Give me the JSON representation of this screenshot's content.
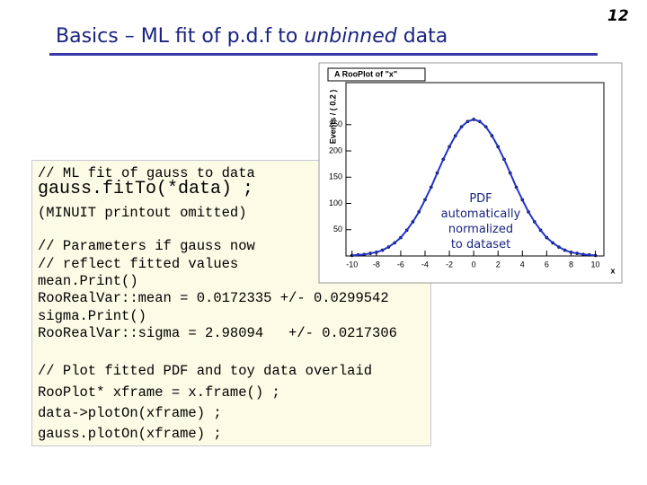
{
  "slide": {
    "title_before": "Basics – ML fit of p.d.f to ",
    "title_italic": "unbinned",
    "title_after": " data",
    "page_number": "12"
  },
  "code": {
    "lines": [
      "// ML fit of gauss to data",
      "gauss.fitTo(*data) ;",
      "(MINUIT printout omitted)",
      "// Parameters if gauss now",
      "// reflect fitted values",
      "mean.Print()",
      "RooRealVar::mean = 0.0172335 +/- 0.0299542",
      "sigma.Print()",
      "RooRealVar::sigma = 2.98094   +/- 0.0217306",
      "// Plot fitted PDF and toy data overlaid",
      "RooPlot* xframe = x.frame() ;",
      "data->plotOn(xframe) ;",
      "gauss.plotOn(xframe) ;"
    ]
  },
  "annotation": {
    "lines": [
      "PDF",
      "automatically",
      "normalized",
      "to dataset"
    ]
  },
  "chart_data": {
    "type": "scatter",
    "title": "A RooPlot of \"x\"",
    "ylabel": "Events / ( 0.2 )",
    "xlabel": "x",
    "x": [
      -10,
      -9.5,
      -9,
      -8.5,
      -8,
      -7.5,
      -7,
      -6.5,
      -6,
      -5.5,
      -5,
      -4.5,
      -4,
      -3.5,
      -3,
      -2.5,
      -2,
      -1.5,
      -1,
      -0.5,
      0,
      0.5,
      1,
      1.5,
      2,
      2.5,
      3,
      3.5,
      4,
      4.5,
      5,
      5.5,
      6,
      6.5,
      7,
      7.5,
      8,
      8.5,
      9,
      9.5,
      10
    ],
    "series": [
      {
        "marker": "point",
        "color": "#000000",
        "values": [
          1,
          2,
          3,
          5,
          7,
          11,
          17,
          25,
          35,
          49,
          65,
          84,
          107,
          131,
          158,
          184,
          208,
          229,
          246,
          256,
          260,
          256,
          246,
          229,
          208,
          184,
          158,
          131,
          107,
          84,
          65,
          49,
          35,
          25,
          17,
          11,
          7,
          5,
          3,
          2,
          1
        ]
      },
      {
        "marker": "line",
        "color": "#2233cc",
        "values": [
          1,
          2,
          3,
          5,
          7,
          11,
          17,
          25,
          35,
          49,
          65,
          84,
          107,
          131,
          158,
          184,
          208,
          229,
          246,
          256,
          260,
          256,
          246,
          229,
          208,
          184,
          158,
          131,
          107,
          84,
          65,
          49,
          35,
          25,
          17,
          11,
          7,
          5,
          3,
          2,
          1
        ]
      }
    ],
    "xlim": [
      -10.5,
      10.7
    ],
    "ylim": [
      0,
      330
    ],
    "xticks": [
      -10,
      -8,
      -6,
      -4,
      -2,
      0,
      2,
      4,
      6,
      8,
      10
    ],
    "yticks": [
      50,
      100,
      150,
      200,
      250
    ]
  }
}
